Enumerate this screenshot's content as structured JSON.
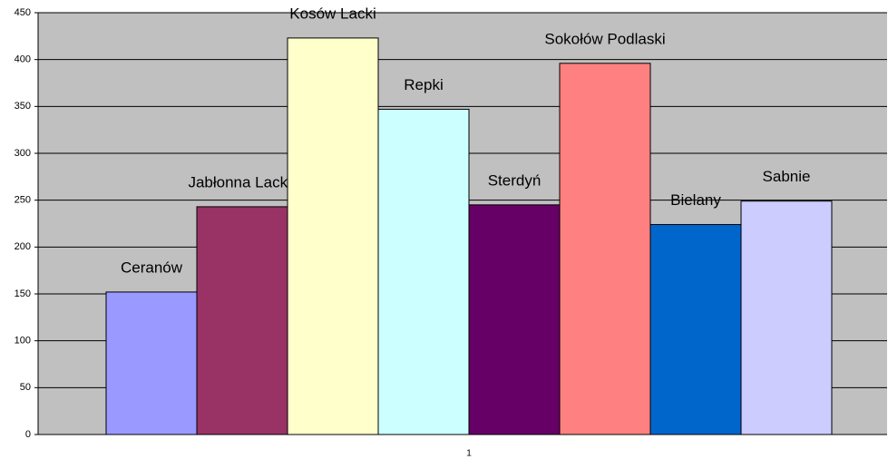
{
  "chart_data": {
    "type": "bar",
    "categories": [
      "1"
    ],
    "series": [
      {
        "name": "Ceranów",
        "color": "#9999ff",
        "values": [
          152
        ]
      },
      {
        "name": "Jabłonna Lacka",
        "color": "#993366",
        "values": [
          243
        ]
      },
      {
        "name": "Kosów Lacki",
        "color": "#ffffcc",
        "values": [
          423
        ]
      },
      {
        "name": "Repki",
        "color": "#ccffff",
        "values": [
          347
        ]
      },
      {
        "name": "Sterdyń",
        "color": "#660066",
        "values": [
          245
        ]
      },
      {
        "name": "Sokołów Podlaski",
        "color": "#ff8080",
        "values": [
          396
        ]
      },
      {
        "name": "Bielany",
        "color": "#0066cc",
        "values": [
          224
        ]
      },
      {
        "name": "Sabnie",
        "color": "#ccccff",
        "values": [
          249
        ]
      }
    ],
    "ylim": [
      0,
      450
    ],
    "yticks": [
      0,
      50,
      100,
      150,
      200,
      250,
      300,
      350,
      400,
      450
    ],
    "grid": true,
    "plot_color": "#c0c0c0"
  }
}
